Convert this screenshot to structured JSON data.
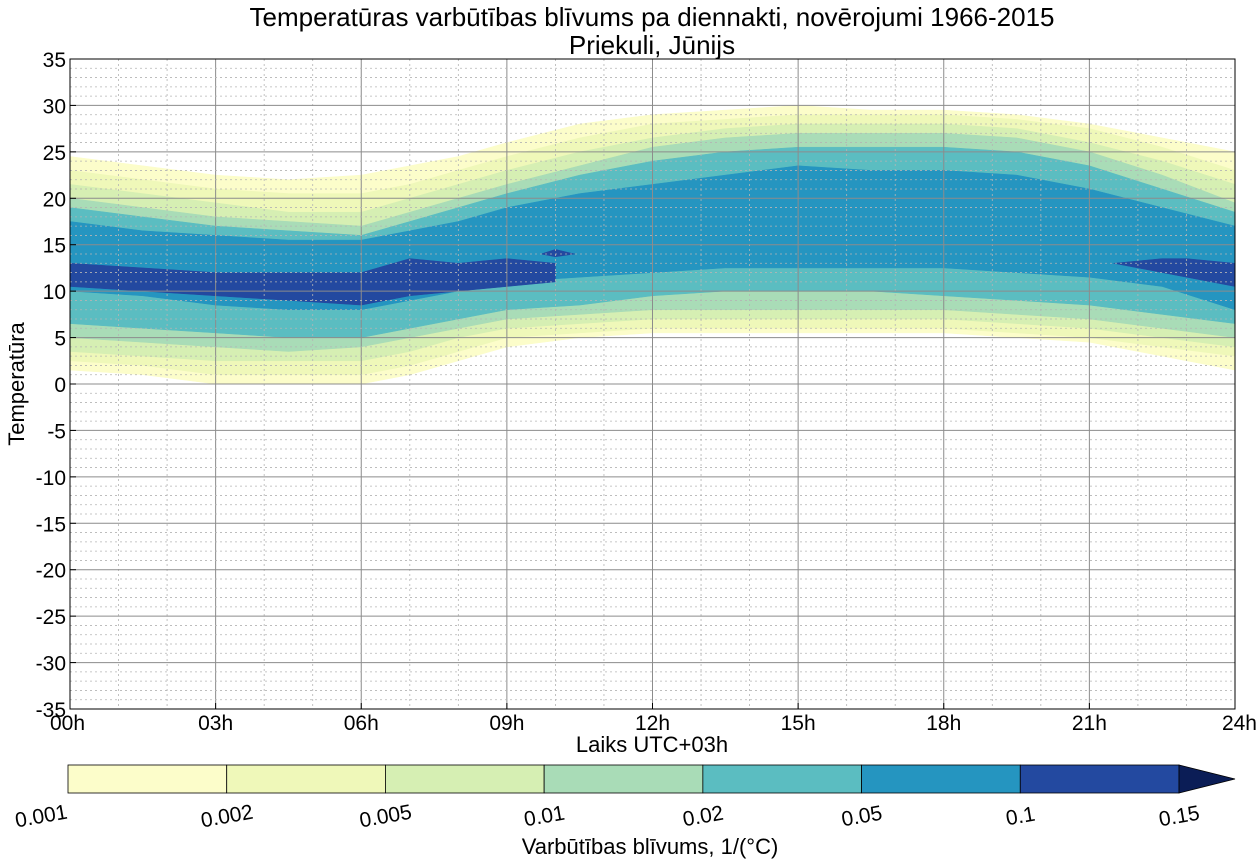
{
  "chart_data": {
    "type": "contourf",
    "title": "Temperatūras varbūtības blīvums pa diennakti, novērojumi 1966-2015",
    "subtitle": "Priekuli, Jūnijs",
    "xlabel": "Laiks UTC+03h",
    "ylabel": "Temperatūra",
    "x_ticks": [
      "00h",
      "03h",
      "06h",
      "09h",
      "12h",
      "15h",
      "18h",
      "21h",
      "24h"
    ],
    "x_range_hours": [
      0,
      24
    ],
    "y_ticks": [
      "35",
      "30",
      "25",
      "20",
      "15",
      "10",
      "5",
      "0",
      "-5",
      "-10",
      "-15",
      "-20",
      "-25",
      "-30",
      "-35"
    ],
    "ylim": [
      -35,
      35
    ],
    "grid": "major solid, minor dotted",
    "levels": [
      0.001,
      0.002,
      0.005,
      0.01,
      0.02,
      0.05,
      0.1,
      0.15
    ],
    "level_labels": [
      "0.001",
      "0.002",
      "0.005",
      "0.01",
      "0.02",
      "0.05",
      "0.1",
      "0.15"
    ],
    "colors": [
      "#fcfdca",
      "#eff8b9",
      "#d6efb3",
      "#a9dcb7",
      "#5bbdc1",
      "#2595c0",
      "#2349a0",
      "#0b1d56"
    ],
    "colorbar_extend": "max",
    "colorbar_label": "Varbūtības blīvums, 1/(°C)",
    "x_hours": [
      0,
      1.5,
      3,
      4.5,
      6,
      7,
      8,
      9,
      10.5,
      12,
      13.5,
      15,
      16.5,
      18,
      19.5,
      21,
      22.5,
      24
    ],
    "contour_bands": [
      {
        "level": 0.001,
        "upper": [
          24.5,
          23.5,
          22.5,
          22,
          22.5,
          23.5,
          24.5,
          26,
          28,
          29,
          29.5,
          30,
          29.5,
          29.5,
          29,
          28,
          26.5,
          25
        ],
        "lower": [
          1.5,
          1,
          0,
          0,
          0,
          1,
          2.5,
          4,
          5,
          5.5,
          5.5,
          5.5,
          5.5,
          5.5,
          5,
          4.5,
          3,
          1.5
        ]
      },
      {
        "level": 0.002,
        "upper": [
          23,
          22,
          21,
          20.5,
          20.5,
          21.5,
          23,
          24.5,
          26.5,
          28,
          28.5,
          29,
          29,
          29,
          28.5,
          27.5,
          25.5,
          23
        ],
        "lower": [
          2.5,
          2,
          1,
          1,
          1,
          2,
          3.5,
          5,
          5.5,
          6,
          6,
          6,
          6,
          6,
          5.5,
          5,
          4,
          3
        ]
      },
      {
        "level": 0.005,
        "upper": [
          21.5,
          20.5,
          19.5,
          18.5,
          18.5,
          20,
          21.5,
          23,
          25,
          26.5,
          27.5,
          28,
          28,
          28,
          27.5,
          26,
          24,
          21.5
        ],
        "lower": [
          3.5,
          3,
          2.5,
          2.5,
          2.5,
          3.5,
          5,
          6,
          6.5,
          7,
          7,
          7,
          7,
          7,
          6.5,
          6,
          5,
          4
        ]
      },
      {
        "level": 0.01,
        "upper": [
          20,
          19,
          18,
          17.5,
          17,
          18.5,
          20,
          21.5,
          23.5,
          25.5,
          26.5,
          27,
          27,
          27,
          26.5,
          25,
          22.5,
          19.5
        ],
        "lower": [
          5,
          4.5,
          4,
          3.5,
          4,
          5,
          6,
          7,
          7.5,
          8,
          8,
          8,
          8,
          8,
          7.5,
          7,
          6,
          5
        ]
      },
      {
        "level": 0.02,
        "upper": [
          19,
          18,
          17,
          16.5,
          16,
          17.5,
          19,
          20.5,
          22.5,
          24,
          25,
          25.5,
          25.5,
          25.5,
          25,
          23.5,
          21,
          18.5
        ],
        "lower": [
          6.5,
          6,
          5.5,
          5,
          5,
          6,
          7,
          8,
          8.5,
          9.5,
          10,
          10,
          10,
          9.5,
          9,
          8.5,
          7.5,
          6.5
        ]
      },
      {
        "level": 0.05,
        "upper": [
          17.5,
          16.5,
          16,
          15.5,
          15.5,
          16.5,
          17.5,
          19,
          20.5,
          21.5,
          22.5,
          23.5,
          23,
          23,
          22.5,
          21,
          19,
          17
        ],
        "lower": [
          10,
          9.5,
          8.5,
          8,
          8,
          9,
          10,
          11,
          11.5,
          12,
          12.5,
          12.5,
          12.5,
          12.5,
          12,
          11.5,
          10.5,
          8
        ]
      },
      {
        "level": 0.1,
        "segments": [
          {
            "x": [
              0,
              1.5,
              3,
              4.5,
              6,
              7,
              8,
              9,
              10
            ],
            "upper": [
              13,
              12.5,
              12,
              12,
              12,
              13.5,
              13,
              13.5,
              13
            ],
            "lower": [
              10.5,
              10,
              9.5,
              9,
              8.5,
              9.5,
              10,
              10.5,
              11
            ]
          },
          {
            "x": [
              9.7,
              10,
              10.4
            ],
            "upper": [
              14,
              14.5,
              14
            ],
            "lower": [
              14,
              13.7,
              14
            ]
          },
          {
            "x": [
              21.5,
              22.5,
              23,
              24
            ],
            "upper": [
              13,
              13.5,
              13.5,
              13
            ],
            "lower": [
              13,
              12,
              11.5,
              10.5
            ]
          }
        ]
      }
    ]
  }
}
